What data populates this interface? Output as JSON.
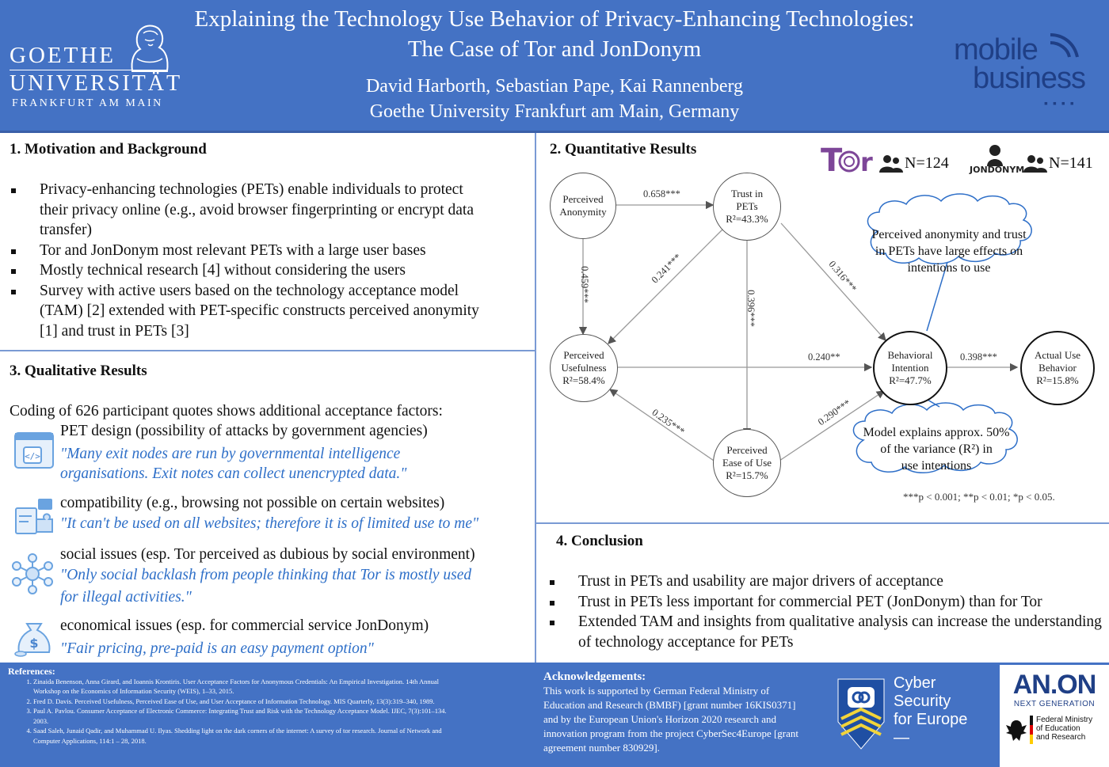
{
  "header": {
    "logo_left": {
      "line1": "GOETHE",
      "line2": "UNIVERSITÄT",
      "line3": "FRANKFURT AM MAIN"
    },
    "title_line1": "Explaining the Technology Use Behavior of Privacy-Enhancing Technologies:",
    "title_line2": "The Case of Tor and JonDonym",
    "authors": "David Harborth, Sebastian Pape, Kai Rannenberg",
    "affiliation": "Goethe University Frankfurt am Main, Germany",
    "logo_right": {
      "line1": "mobile",
      "line2": "business",
      "dots": "▪▪▪▪"
    }
  },
  "section1": {
    "title": "1. Motivation and Background",
    "bullets": [
      "Privacy-enhancing technologies (PETs) enable individuals to protect their privacy online (e.g., avoid browser fingerprinting or encrypt data transfer)",
      "Tor and JonDonym most relevant PETs with a large user bases",
      "Mostly technical research [4] without considering the users",
      "Survey with active users based on the technology acceptance model (TAM) [2] extended with PET-specific constructs perceived anonymity [1] and trust in PETs [3]"
    ]
  },
  "section3": {
    "title": "3. Qualitative Results",
    "intro": "Coding of 626 participant quotes shows additional acceptance factors:",
    "items": [
      {
        "head": "PET design (possibility of attacks by government agencies)",
        "quote1": "\"Many exit nodes are run by governmental intelligence",
        "quote2": "organisations. Exit notes can collect unencrypted data.\""
      },
      {
        "head": "compatibility (e.g., browsing not possible on certain websites)",
        "quote1": "\"It can't be used on all websites; therefore it is of limited use to me\"",
        "quote2": ""
      },
      {
        "head": "social issues (esp. Tor perceived as dubious by social environment)",
        "quote1": "\"Only social backlash from people thinking that Tor is mostly used",
        "quote2": "for illegal activities.\""
      },
      {
        "head": "economical issues (esp. for commercial service JonDonym)",
        "quote1": "\"Fair pricing, pre-paid is an easy payment option\"",
        "quote2": ""
      }
    ]
  },
  "section2": {
    "title": "2. Quantitative Results",
    "tor_logo": "Tor",
    "tor_n": "N=124",
    "jondonym_logo": "JonDonym",
    "jon_n": "N=141",
    "nodes": {
      "anonymity": [
        "Perceived",
        "Anonymity"
      ],
      "trust": [
        "Trust in",
        "PETs",
        "R²=43.3%"
      ],
      "usefulness": [
        "Perceived",
        "Usefulness",
        "R²=58.4%"
      ],
      "ease": [
        "Perceived",
        "Ease of Use",
        "R²=15.7%"
      ],
      "intention": [
        "Behavioral",
        "Intention",
        "R²=47.7%"
      ],
      "actual": [
        "Actual Use",
        "Behavior",
        "R²=15.8%"
      ]
    },
    "edges": {
      "anon_trust": "0.658***",
      "anon_usef": "0.459***",
      "trust_usef": "0.241***",
      "trust_ease": "0.396***",
      "trust_intent": "0.316***",
      "usef_intent": "0.240**",
      "ease_usef": "0.235***",
      "ease_intent": "0.290***",
      "intent_actual": "0.398***"
    },
    "cloud1": [
      "Perceived anonymity and trust",
      "in PETs have large effects on",
      "intentions to use"
    ],
    "cloud2": [
      "Model explains approx. 50%",
      "of the variance (R²) in",
      "use intentions"
    ],
    "significance": "***p < 0.001; **p < 0.01; *p < 0.05."
  },
  "section4": {
    "title": "4. Conclusion",
    "bullets": [
      "Trust in PETs and usability are major drivers of acceptance",
      "Trust in PETs less important for commercial PET (JonDonym) than for Tor",
      "Extended TAM and insights from qualitative analysis can increase the understanding of technology acceptance for PETs"
    ]
  },
  "footer": {
    "refs_title": "References:",
    "refs": [
      "Zinaida Benenson, Anna Girard, and Ioannis Krontiris. User Acceptance Factors for Anonymous Credentials: An Empirical Investigation. 14th Annual Workshop on the Economics of Information Security (WEIS), 1–33, 2015.",
      "Fred D. Davis. Perceived Usefulness, Perceived Ease of Use, and User Acceptance of Information Technology. MIS Quarterly, 13(3):319–340, 1989.",
      "Paul A. Pavlou. Consumer Acceptance of Electronic Commerce: Integrating Trust and Risk with the Technology Acceptance Model. IJEC, 7(3):101–134. 2003.",
      "Saad Saleh, Junaid Qadir, and Muhammad U. Ilyas. Shedding light on the dark corners of the internet: A survey of tor research. Journal of Network and Computer Applications, 114:1 – 28, 2018."
    ],
    "ack_title": "Acknowledgements:",
    "ack_text": "This work is supported by German Federal Ministry of Education and Research (BMBF) [grant number 16KIS0371] and by the European Union's Horizon 2020 research and innovation program from the project CyberSec4Europe [grant agreement number 830929].",
    "cyber": [
      "Cyber",
      "Security",
      "for Europe",
      "—"
    ],
    "anon_logo": {
      "name": "AN.ON",
      "sub": "NEXT GENERATION",
      "ministry": [
        "Federal Ministry",
        "of Education",
        "and Research"
      ]
    }
  }
}
